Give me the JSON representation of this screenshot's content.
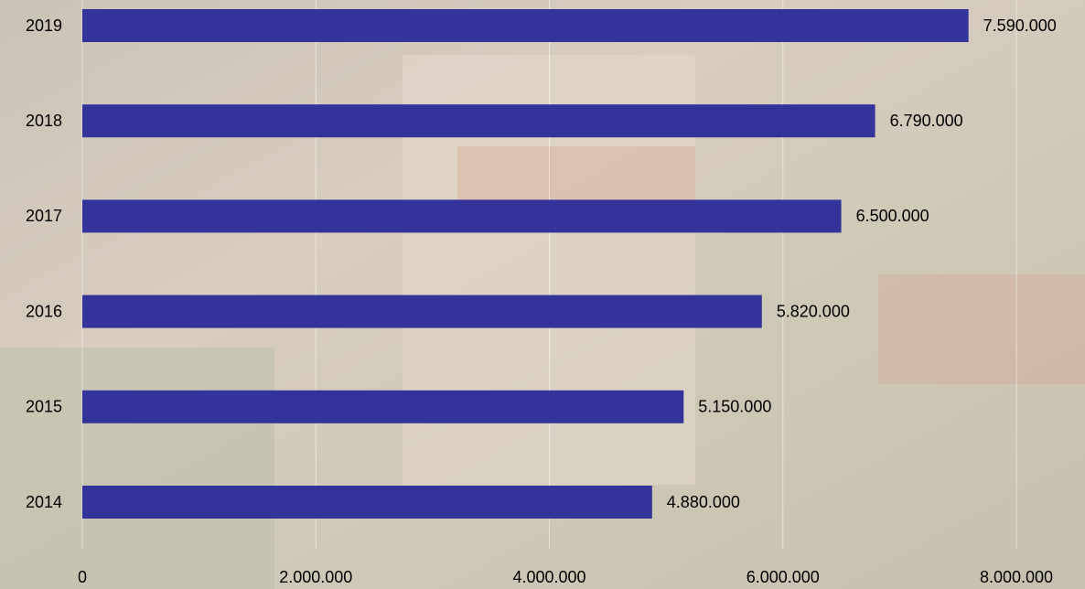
{
  "chart_data": {
    "type": "bar",
    "orientation": "horizontal",
    "categories": [
      "2019",
      "2018",
      "2017",
      "2016",
      "2015",
      "2014"
    ],
    "values": [
      7590000,
      6790000,
      6500000,
      5820000,
      5150000,
      4880000
    ],
    "value_labels": [
      "7.590.000",
      "6.790.000",
      "6.500.000",
      "5.820.000",
      "5.150.000",
      "4.880.000"
    ],
    "color": "#333399",
    "xlim": [
      0,
      8000000
    ],
    "xticks": [
      0,
      {
        "value": 2000000,
        "label": "2.000.000"
      },
      {
        "value": 4000000,
        "label": "4.000.000"
      },
      {
        "value": 6000000,
        "label": "6.000.000"
      },
      {
        "value": 8000000,
        "label": "8.000.000"
      }
    ],
    "grid": true
  }
}
